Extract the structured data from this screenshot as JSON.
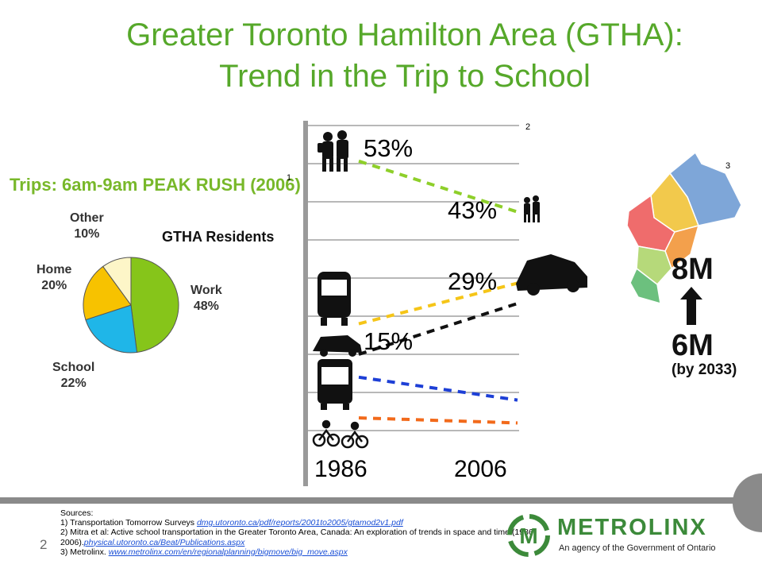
{
  "title": {
    "line1": "Greater Toronto Hamilton Area (GTHA):",
    "line2": "Trend in the Trip to School"
  },
  "trips_heading": "Trips: 6am-9am PEAK RUSH (2006)",
  "references": {
    "r1": "1",
    "r2": "2",
    "r3": "3"
  },
  "chart_data": [
    {
      "type": "pie",
      "title": "GTHA Residents",
      "slices": [
        {
          "name": "Work",
          "value": 48,
          "label": "48%",
          "color": "#86c51a"
        },
        {
          "name": "School",
          "value": 22,
          "label": "22%",
          "color": "#1fb6e8"
        },
        {
          "name": "Home",
          "value": 20,
          "label": "20%",
          "color": "#f7c200"
        },
        {
          "name": "Other",
          "value": 10,
          "label": "10%",
          "color": "#fdf6c8"
        }
      ]
    },
    {
      "type": "line",
      "title": "",
      "x": [
        1986,
        2006
      ],
      "xticks": [
        "1986",
        "2006"
      ],
      "ylim": [
        0,
        60
      ],
      "grid": true,
      "series": [
        {
          "mode": "walk",
          "values": [
            53,
            43
          ],
          "labels": [
            "53%",
            "43%"
          ],
          "color": "#8ecf2a"
        },
        {
          "mode": "school-bus",
          "values": [
            21,
            29
          ],
          "labels": [
            "",
            "29%"
          ],
          "color": "#f5c518"
        },
        {
          "mode": "car",
          "values": [
            15,
            25
          ],
          "labels": [
            "15%",
            ""
          ],
          "color": "#111111"
        },
        {
          "mode": "transit-bus",
          "values": [
            10.5,
            6
          ],
          "labels": [
            "",
            ""
          ],
          "color": "#1d3fd6"
        },
        {
          "mode": "bicycle",
          "values": [
            2.5,
            1.5
          ],
          "labels": [
            "",
            ""
          ],
          "color": "#f26a1b"
        }
      ]
    }
  ],
  "population": {
    "future": "8M",
    "current": "6M",
    "note": "(by 2033)",
    "region_colors": [
      "#7ea6d8",
      "#f2c94c",
      "#ef6c6c",
      "#f3a04c",
      "#b6d97a",
      "#6cc07e"
    ]
  },
  "sources": {
    "heading": "Sources:",
    "s1_text": "1) Transportation Tomorrow Surveys  ",
    "s1_link": "dmg.utoronto.ca/pdf/reports/2001to2005/gtamod2v1.pdf",
    "s2_text": "2)  Mitra et al:  Active school transportation in the Greater Toronto Area, Canada: An exploration of trends in space and time (1986-2006).",
    "s2_link": "physical.utoronto.ca/Beat/Publications.aspx",
    "s3_text": "3) Metrolinx. ",
    "s3_link": "www.metrolinx.com/en/regionalplanning/bigmove/big_move.aspx"
  },
  "page_number": "2",
  "logo": {
    "name": "METROLINX",
    "tagline": "An agency of the Government of Ontario",
    "mark": "M",
    "color": "#3c8a3a"
  }
}
